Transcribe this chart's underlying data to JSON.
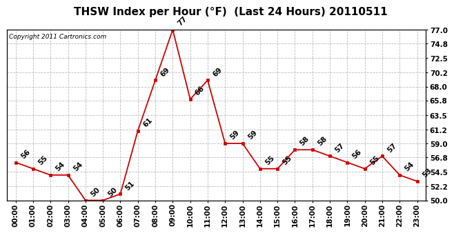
{
  "title": "THSW Index per Hour (°F)  (Last 24 Hours) 20110511",
  "copyright": "Copyright 2011 Cartronics.com",
  "hours": [
    "00:00",
    "01:00",
    "02:00",
    "03:00",
    "04:00",
    "05:00",
    "06:00",
    "07:00",
    "08:00",
    "09:00",
    "10:00",
    "11:00",
    "12:00",
    "13:00",
    "14:00",
    "15:00",
    "16:00",
    "17:00",
    "18:00",
    "19:00",
    "20:00",
    "21:00",
    "22:00",
    "23:00"
  ],
  "values": [
    56,
    55,
    54,
    54,
    50,
    50,
    51,
    61,
    69,
    77,
    66,
    69,
    59,
    59,
    55,
    55,
    58,
    58,
    57,
    56,
    55,
    57,
    54,
    53
  ],
  "ylim_min": 50.0,
  "ylim_max": 77.0,
  "yticks": [
    50.0,
    52.2,
    54.5,
    56.8,
    59.0,
    61.2,
    63.5,
    65.8,
    68.0,
    70.2,
    72.5,
    74.8,
    77.0
  ],
  "ytick_labels": [
    "50.0",
    "52.2",
    "54.5",
    "56.8",
    "59.0",
    "61.2",
    "63.5",
    "65.8",
    "68.0",
    "70.2",
    "72.5",
    "74.8",
    "77.0"
  ],
  "line_color": "#cc0000",
  "marker_color": "#cc0000",
  "bg_color": "#ffffff",
  "grid_color": "#bbbbbb",
  "title_fontsize": 11,
  "tick_fontsize": 7.5,
  "annotation_fontsize": 7.5,
  "copyright_fontsize": 6.5
}
